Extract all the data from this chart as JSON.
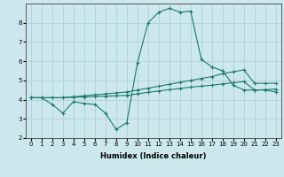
{
  "background_color": "#cce8ed",
  "grid_color": "#b0d0d8",
  "line_color": "#1a7a6e",
  "xlabel": "Humidex (Indice chaleur)",
  "xlim": [
    -0.5,
    23.5
  ],
  "ylim": [
    2,
    9
  ],
  "xticks": [
    0,
    1,
    2,
    3,
    4,
    5,
    6,
    7,
    8,
    9,
    10,
    11,
    12,
    13,
    14,
    15,
    16,
    17,
    18,
    19,
    20,
    21,
    22,
    23
  ],
  "yticks": [
    2,
    3,
    4,
    5,
    6,
    7,
    8
  ],
  "line1_x": [
    0,
    1,
    2,
    3,
    4,
    5,
    6,
    7,
    8,
    9,
    10,
    11,
    12,
    13,
    14,
    15,
    16,
    17,
    18,
    19,
    20,
    21,
    22,
    23
  ],
  "line1_y": [
    4.1,
    4.1,
    3.75,
    3.3,
    3.9,
    3.8,
    3.75,
    3.3,
    2.45,
    2.8,
    5.9,
    8.0,
    8.55,
    8.75,
    8.55,
    8.6,
    6.1,
    5.7,
    5.5,
    4.75,
    4.5,
    4.5,
    4.5,
    4.4
  ],
  "line2_x": [
    0,
    1,
    2,
    3,
    4,
    5,
    6,
    7,
    8,
    9,
    10,
    11,
    12,
    13,
    14,
    15,
    16,
    17,
    18,
    19,
    20,
    21,
    22,
    23
  ],
  "line2_y": [
    4.1,
    4.1,
    4.1,
    4.1,
    4.15,
    4.2,
    4.25,
    4.3,
    4.35,
    4.4,
    4.5,
    4.6,
    4.7,
    4.8,
    4.9,
    5.0,
    5.1,
    5.2,
    5.35,
    5.45,
    5.55,
    4.85,
    4.85,
    4.85
  ],
  "line3_x": [
    0,
    1,
    2,
    3,
    4,
    5,
    6,
    7,
    8,
    9,
    10,
    11,
    12,
    13,
    14,
    15,
    16,
    17,
    18,
    19,
    20,
    21,
    22,
    23
  ],
  "line3_y": [
    4.1,
    4.1,
    4.1,
    4.1,
    4.12,
    4.14,
    4.16,
    4.18,
    4.2,
    4.22,
    4.3,
    4.38,
    4.45,
    4.52,
    4.58,
    4.65,
    4.7,
    4.75,
    4.82,
    4.88,
    4.94,
    4.5,
    4.52,
    4.55
  ],
  "tick_fontsize": 5,
  "xlabel_fontsize": 6,
  "linewidth": 0.8,
  "markersize": 3
}
